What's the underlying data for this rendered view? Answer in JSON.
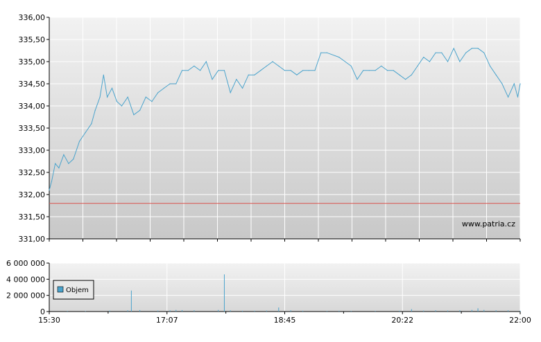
{
  "colors": {
    "price_line": "#4aa3cc",
    "reference_line": "#d9534f",
    "volume_bar": "#4aa3cc",
    "grid": "#ffffff",
    "axis": "#000000",
    "plot_bg_top": "#f2f2f2",
    "plot_bg_bottom": "#c8c8c8"
  },
  "watermark": "www.patria.cz",
  "chart_data": [
    {
      "type": "line",
      "name": "price-chart",
      "ylim": [
        331.0,
        336.0
      ],
      "y_ticks": [
        "336,00",
        "335,50",
        "335,00",
        "334,50",
        "334,00",
        "333,50",
        "333,00",
        "332,50",
        "332,00",
        "331,50",
        "331,00"
      ],
      "y_tick_values": [
        336.0,
        335.5,
        335.0,
        334.5,
        334.0,
        333.5,
        333.0,
        332.5,
        332.0,
        331.5,
        331.0
      ],
      "x_range": [
        "15:30",
        "22:00"
      ],
      "grid": true,
      "reference_line": 331.8,
      "series": [
        {
          "x": [
            "15:30",
            "15:32",
            "15:35",
            "15:38",
            "15:42",
            "15:46",
            "15:50",
            "15:55",
            "16:00",
            "16:05",
            "16:08",
            "16:12",
            "16:15",
            "16:18",
            "16:22",
            "16:26",
            "16:30",
            "16:35",
            "16:40",
            "16:45",
            "16:50",
            "16:55",
            "17:00",
            "17:05",
            "17:10",
            "17:15",
            "17:20",
            "17:25",
            "17:30",
            "17:35",
            "17:40",
            "17:45",
            "17:50",
            "17:55",
            "18:00",
            "18:05",
            "18:10",
            "18:15",
            "18:20",
            "18:25",
            "18:30",
            "18:35",
            "18:40",
            "18:45",
            "18:50",
            "18:55",
            "19:00",
            "19:05",
            "19:10",
            "19:15",
            "19:20",
            "19:30",
            "19:40",
            "19:45",
            "19:50",
            "19:55",
            "20:00",
            "20:05",
            "20:10",
            "20:15",
            "20:20",
            "20:25",
            "20:30",
            "20:35",
            "20:40",
            "20:45",
            "20:50",
            "20:55",
            "21:00",
            "21:05",
            "21:10",
            "21:15",
            "21:20",
            "21:25",
            "21:30",
            "21:35",
            "21:40",
            "21:45",
            "21:50",
            "21:55",
            "21:58",
            "22:00"
          ],
          "y": [
            332.1,
            332.3,
            332.7,
            332.6,
            332.9,
            332.7,
            332.8,
            333.2,
            333.4,
            333.6,
            333.9,
            334.2,
            334.7,
            334.2,
            334.4,
            334.1,
            334.0,
            334.2,
            333.8,
            333.9,
            334.2,
            334.1,
            334.3,
            334.4,
            334.5,
            334.5,
            334.8,
            334.8,
            334.9,
            334.8,
            335.0,
            334.6,
            334.8,
            334.8,
            334.3,
            334.6,
            334.4,
            334.7,
            334.7,
            334.8,
            334.9,
            335.0,
            334.9,
            334.8,
            334.8,
            334.7,
            334.8,
            334.8,
            334.8,
            335.2,
            335.2,
            335.1,
            334.9,
            334.6,
            334.8,
            334.8,
            334.8,
            334.9,
            334.8,
            334.8,
            334.7,
            334.6,
            334.7,
            334.9,
            335.1,
            335.0,
            335.2,
            335.2,
            335.0,
            335.3,
            335.0,
            335.2,
            335.3,
            335.3,
            335.2,
            334.9,
            334.7,
            334.5,
            334.2,
            334.5,
            334.2,
            334.5
          ]
        }
      ]
    },
    {
      "type": "bar",
      "name": "volume-chart",
      "ylim": [
        0,
        6000000
      ],
      "y_ticks": [
        "6 000 000",
        "4 000 000",
        "2 000 000",
        "0"
      ],
      "y_tick_values": [
        6000000,
        4000000,
        2000000,
        0
      ],
      "x_ticks": [
        "15:30",
        "17:07",
        "18:45",
        "20:22",
        "22:00"
      ],
      "x_range": [
        "15:30",
        "22:00"
      ],
      "grid": true,
      "legend": "Objem",
      "series": [
        {
          "name": "Objem",
          "x": [
            "15:45",
            "16:00",
            "16:20",
            "16:35",
            "16:38",
            "16:45",
            "17:00",
            "17:10",
            "17:15",
            "17:20",
            "17:30",
            "17:50",
            "17:55",
            "18:00",
            "18:10",
            "18:20",
            "18:30",
            "18:40",
            "18:50",
            "19:00",
            "19:20",
            "19:30",
            "19:40",
            "20:00",
            "20:20",
            "20:30",
            "20:40",
            "20:50",
            "21:00",
            "21:10",
            "21:20",
            "21:25",
            "21:30",
            "21:40",
            "21:50",
            "22:00"
          ],
          "values": [
            80000,
            60000,
            120000,
            150000,
            2600000,
            180000,
            120000,
            150000,
            200000,
            180000,
            150000,
            200000,
            4600000,
            150000,
            100000,
            100000,
            120000,
            500000,
            150000,
            100000,
            80000,
            100000,
            80000,
            80000,
            100000,
            300000,
            120000,
            150000,
            120000,
            150000,
            200000,
            400000,
            200000,
            150000,
            150000,
            100000
          ]
        }
      ]
    }
  ]
}
